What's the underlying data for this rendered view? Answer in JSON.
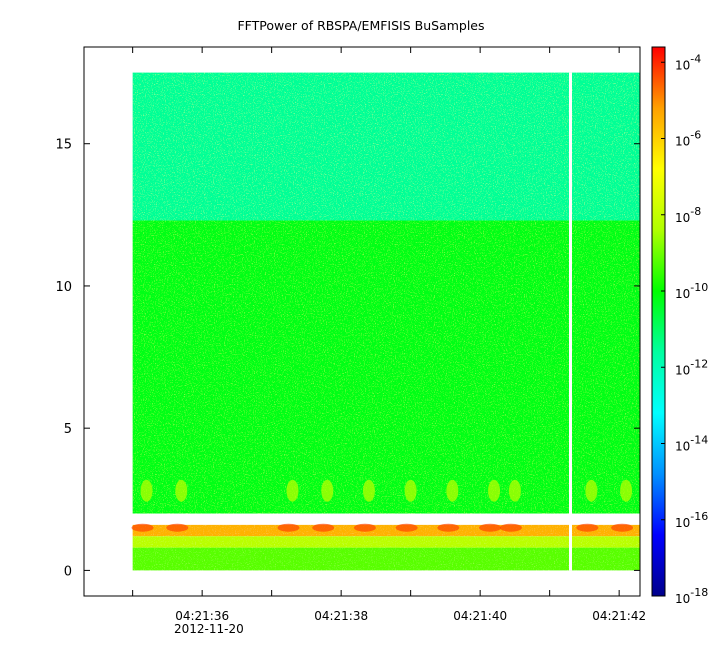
{
  "chart_data": {
    "type": "heatmap",
    "title": "FFTPower of RBSPA/EMFISIS  BuSamples",
    "xlabel": "",
    "ylabel": "",
    "x_tick_labels": [
      "04:21:36",
      "04:21:38",
      "04:21:40",
      "04:21:42"
    ],
    "x_date_label": "2012-11-20",
    "x_tick_seconds": [
      36,
      38,
      40,
      42
    ],
    "x_minor_seconds": [
      35,
      36,
      37,
      38,
      39,
      40,
      41,
      42
    ],
    "xlim_seconds": [
      34.3,
      42.3
    ],
    "y_ticks": [
      0,
      5,
      10,
      15
    ],
    "ylim": [
      -0.9,
      18.4
    ],
    "data_x_range_seconds": [
      35.0,
      42.3
    ],
    "data_y_range": [
      0,
      17.5
    ],
    "gap_at_seconds": 41.3,
    "bands": [
      {
        "y_from": 12.3,
        "y_to": 17.5,
        "log10_power": -11.5
      },
      {
        "y_from": 2.0,
        "y_to": 12.3,
        "log10_power": -10.2
      },
      {
        "y_from": 1.2,
        "y_to": 1.6,
        "log10_power": -5.5
      },
      {
        "y_from": 0.8,
        "y_to": 1.2,
        "log10_power": -8.2
      },
      {
        "y_from": 0.0,
        "y_to": 0.8,
        "log10_power": -9.2
      }
    ],
    "bursts_seconds": [
      35.2,
      35.7,
      37.3,
      37.8,
      38.4,
      39.0,
      39.6,
      40.2,
      40.5,
      41.6,
      42.1
    ],
    "colorbar": {
      "scale": "log",
      "range_exponents": [
        -18,
        -3.6
      ],
      "tick_exponents": [
        -18,
        -16,
        -14,
        -12,
        -10,
        -8,
        -6,
        -4
      ],
      "tick_labels": [
        "10",
        "10",
        "10",
        "10",
        "10",
        "10",
        "10",
        "10"
      ],
      "tick_superscripts": [
        "-18",
        "-16",
        "-14",
        "-12",
        "-10",
        "-8",
        "-6",
        "-4"
      ],
      "colormap": [
        "#00008b",
        "#0000ff",
        "#0090ff",
        "#00ffff",
        "#00ffa0",
        "#00ff00",
        "#b0ff00",
        "#ffff00",
        "#ffa000",
        "#ff0000"
      ]
    }
  }
}
